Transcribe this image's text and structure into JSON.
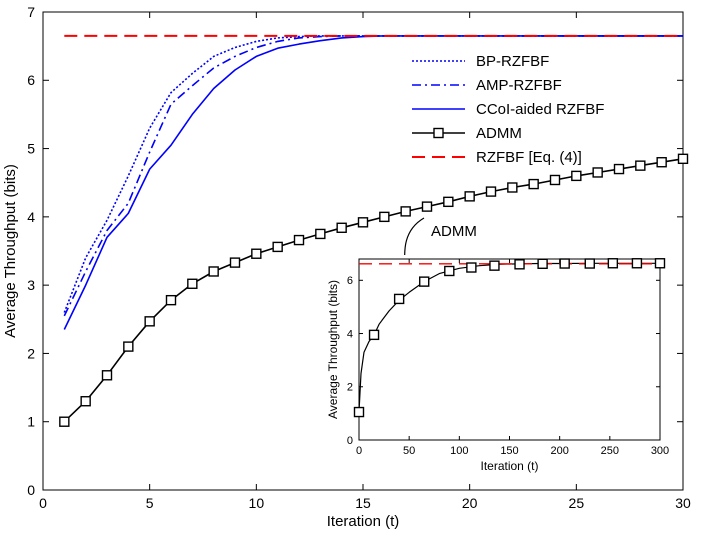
{
  "chart_data": [
    {
      "type": "line",
      "xlabel": "Iteration (t)",
      "ylabel": "Average Throughput (bits)",
      "xlim": [
        0,
        30
      ],
      "ylim": [
        0,
        7
      ],
      "xticks": [
        0,
        5,
        10,
        15,
        20,
        25,
        30
      ],
      "yticks": [
        0,
        1,
        2,
        3,
        4,
        5,
        6,
        7
      ],
      "legend": "top-right",
      "series": [
        {
          "name": "BP-RZFBF",
          "color": "#0000ff",
          "style": "dotted",
          "x": [
            1,
            2,
            3,
            4,
            5,
            6,
            7,
            8,
            9,
            10,
            11,
            12,
            13,
            14,
            15,
            16,
            17,
            18,
            30
          ],
          "y": [
            2.6,
            3.4,
            3.95,
            4.6,
            5.3,
            5.82,
            6.1,
            6.35,
            6.48,
            6.57,
            6.62,
            6.64,
            6.65,
            6.65,
            6.65,
            6.65,
            6.65,
            6.65,
            6.65
          ]
        },
        {
          "name": "AMP-RZFBF",
          "color": "#0000ff",
          "style": "dashdot",
          "x": [
            1,
            2,
            3,
            4,
            5,
            6,
            7,
            8,
            9,
            10,
            11,
            12,
            13,
            14,
            15,
            16,
            17,
            18,
            30
          ],
          "y": [
            2.55,
            3.2,
            3.8,
            4.2,
            4.95,
            5.65,
            5.92,
            6.18,
            6.35,
            6.48,
            6.57,
            6.62,
            6.64,
            6.65,
            6.65,
            6.65,
            6.65,
            6.65,
            6.65
          ]
        },
        {
          "name": "CCoI-aided RZFBF",
          "color": "#0000ff",
          "style": "solid",
          "x": [
            1,
            2,
            3,
            4,
            5,
            6,
            7,
            8,
            9,
            10,
            11,
            12,
            13,
            14,
            15,
            16,
            17,
            18,
            30
          ],
          "y": [
            2.35,
            3.0,
            3.7,
            4.05,
            4.7,
            5.05,
            5.5,
            5.88,
            6.15,
            6.35,
            6.47,
            6.53,
            6.58,
            6.62,
            6.64,
            6.65,
            6.65,
            6.65,
            6.65
          ]
        },
        {
          "name": "ADMM",
          "color": "#000000",
          "style": "solid-square",
          "x": [
            1,
            2,
            3,
            4,
            5,
            6,
            7,
            8,
            9,
            10,
            11,
            12,
            13,
            14,
            15,
            16,
            17,
            18,
            19,
            20,
            21,
            22,
            23,
            24,
            25,
            26,
            27,
            28,
            29,
            30
          ],
          "y": [
            1.0,
            1.3,
            1.68,
            2.1,
            2.47,
            2.78,
            3.02,
            3.2,
            3.33,
            3.46,
            3.56,
            3.66,
            3.75,
            3.84,
            3.92,
            4.0,
            4.08,
            4.15,
            4.22,
            4.3,
            4.37,
            4.43,
            4.48,
            4.54,
            4.6,
            4.65,
            4.7,
            4.75,
            4.8,
            4.85
          ]
        },
        {
          "name": "RZFBF [Eq. (4)]",
          "color": "#ff0000",
          "style": "dashed",
          "x": [
            1,
            30
          ],
          "y": [
            6.65,
            6.65
          ]
        }
      ],
      "annotations": [
        {
          "text": "ADMM"
        }
      ]
    },
    {
      "type": "line",
      "xlabel": "Iteration (t)",
      "ylabel": "Average Throughput (bits)",
      "xlim": [
        0,
        300
      ],
      "ylim": [
        0,
        6.8
      ],
      "xticks": [
        0,
        50,
        100,
        150,
        200,
        250,
        300
      ],
      "yticks": [
        0,
        2,
        4,
        6
      ],
      "series": [
        {
          "color": "#000000",
          "style": "solid-square",
          "x": [
            0,
            2,
            5,
            10,
            15,
            20,
            30,
            40,
            50,
            65,
            80,
            100,
            120,
            140,
            160,
            180,
            200,
            230,
            260,
            300
          ],
          "y": [
            1.05,
            2.5,
            3.3,
            3.7,
            3.95,
            4.35,
            4.85,
            5.25,
            5.55,
            5.95,
            6.25,
            6.45,
            6.55,
            6.6,
            6.62,
            6.63,
            6.63,
            6.64,
            6.64,
            6.64
          ]
        },
        {
          "color": "#ff0000",
          "style": "dashed",
          "x": [
            0,
            300
          ],
          "y": [
            6.62,
            6.62
          ]
        }
      ],
      "markers": {
        "x": [
          0,
          15,
          40,
          65,
          90,
          112,
          135,
          160,
          183,
          205,
          230,
          253,
          277,
          300
        ],
        "y": [
          1.05,
          3.95,
          5.3,
          5.95,
          6.35,
          6.48,
          6.55,
          6.6,
          6.62,
          6.63,
          6.63,
          6.64,
          6.64,
          6.64
        ]
      }
    }
  ]
}
